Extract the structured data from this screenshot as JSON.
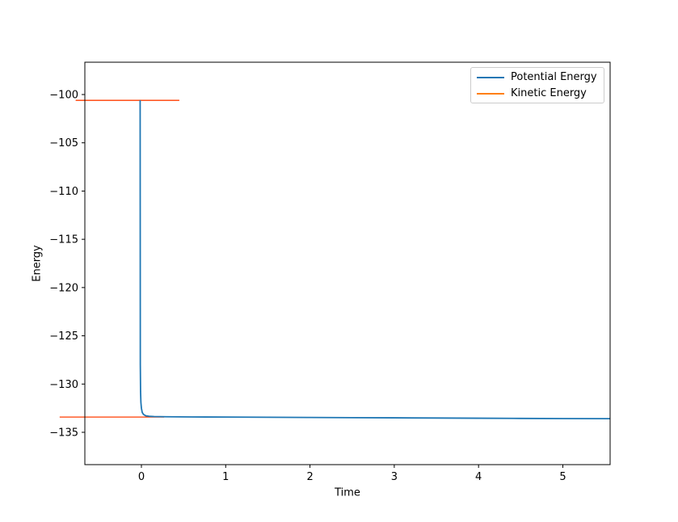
{
  "figure": {
    "background": "#ffffff",
    "text_color": "#000000",
    "spine_color": "#000000"
  },
  "chart_data": {
    "type": "line",
    "title": "",
    "xlabel": "Time",
    "ylabel": "Energy",
    "xlim": [
      -0.671,
      5.561
    ],
    "ylim": [
      -138.35,
      -96.65
    ],
    "xticks": [
      0,
      1,
      2,
      3,
      4,
      5
    ],
    "xtick_labels": [
      "0",
      "1",
      "2",
      "3",
      "4",
      "5"
    ],
    "yticks": [
      -135,
      -130,
      -125,
      -120,
      -115,
      -110,
      -105,
      -100
    ],
    "ytick_labels": [
      "−135",
      "−130",
      "−125",
      "−120",
      "−115",
      "−110",
      "−105",
      "−100"
    ],
    "grid": false,
    "legend": {
      "position": "upper right",
      "entries": [
        {
          "label": "Potential Energy",
          "color": "#1f77b4"
        },
        {
          "label": "Kinetic Energy",
          "color": "#ff7f0e"
        }
      ]
    },
    "series": [
      {
        "name": "Potential Energy",
        "color": "#1f77b4",
        "line_width": 1.8,
        "points": [
          [
            -0.015,
            -100.6
          ],
          [
            -0.013,
            -128.0
          ],
          [
            -0.01,
            -130.8
          ],
          [
            -0.006,
            -131.9
          ],
          [
            0.0,
            -132.5
          ],
          [
            0.01,
            -132.95
          ],
          [
            0.025,
            -133.15
          ],
          [
            0.05,
            -133.28
          ],
          [
            0.09,
            -133.34
          ],
          [
            0.15,
            -133.37
          ],
          [
            0.3,
            -133.39
          ],
          [
            0.6,
            -133.41
          ],
          [
            1.0,
            -133.42
          ],
          [
            1.5,
            -133.44
          ],
          [
            2.0,
            -133.46
          ],
          [
            2.5,
            -133.48
          ],
          [
            3.0,
            -133.5
          ],
          [
            3.5,
            -133.52
          ],
          [
            4.0,
            -133.54
          ],
          [
            4.5,
            -133.56
          ],
          [
            5.0,
            -133.58
          ],
          [
            5.56,
            -133.59
          ]
        ]
      },
      {
        "name": "Kinetic Energy",
        "color": "#ff7f0e",
        "plot_color": "#ff3d00",
        "line_width": 1.3,
        "segments": [
          [
            [
              -0.78,
              -100.6
            ],
            [
              0.45,
              -100.6
            ]
          ],
          [
            [
              -0.97,
              -133.42
            ],
            [
              0.27,
              -133.42
            ]
          ]
        ]
      }
    ]
  }
}
